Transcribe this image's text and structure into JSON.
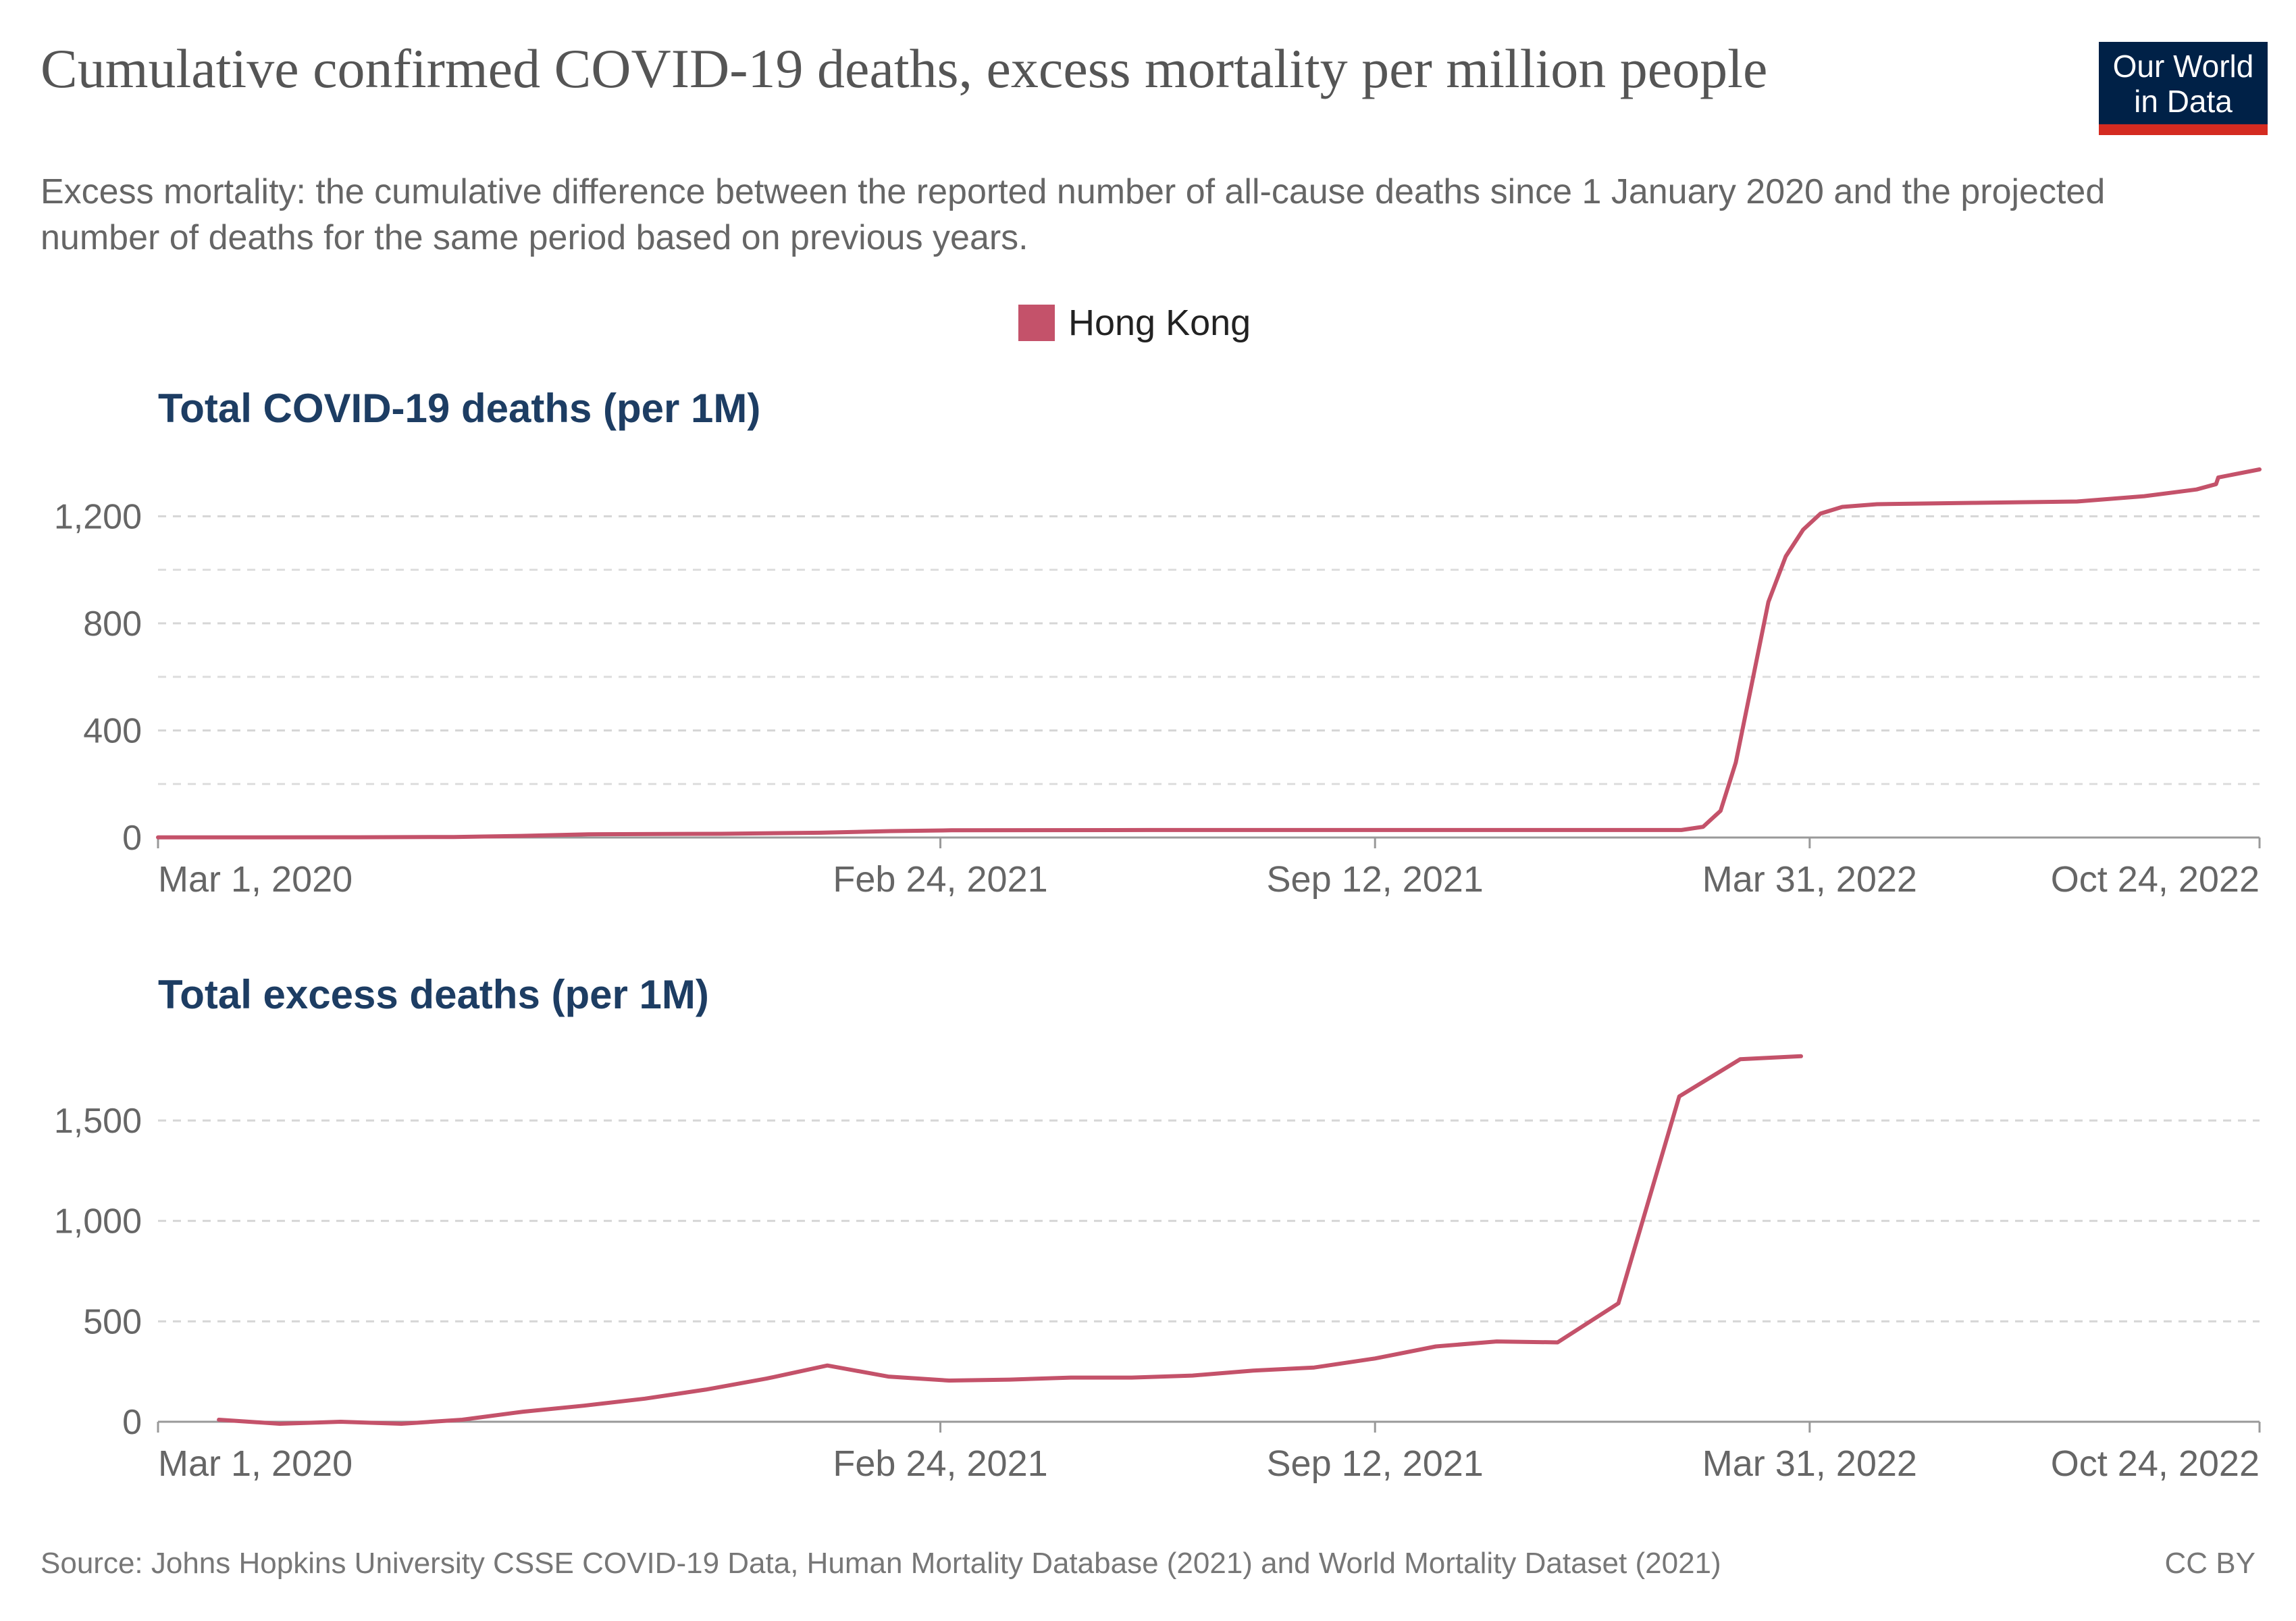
{
  "header": {
    "title": "Cumulative confirmed COVID-19 deaths, excess mortality per million people",
    "subtitle": "Excess mortality: the cumulative difference between the reported number of all-cause deaths since 1 January 2020 and the projected number of deaths for the same period based on previous years.",
    "logo_line1": "Our World",
    "logo_line2": "in Data",
    "logo_color": "#002147",
    "logo_accent": "#d42b21"
  },
  "legend": {
    "label": "Hong Kong",
    "color": "#c4526a"
  },
  "footer": {
    "source": "Source: Johns Hopkins University CSSE COVID-19 Data, Human Mortality Database (2021) and World Mortality Dataset (2021)",
    "license": "CC BY"
  },
  "chart_data": [
    {
      "type": "line",
      "title": "Total COVID-19 deaths (per 1M)",
      "x_axis": {
        "type": "date",
        "range": [
          "2020-03-01",
          "2022-10-24"
        ],
        "ticks": [
          "Mar 1, 2020",
          "Feb 24, 2021",
          "Sep 12, 2021",
          "Mar 31, 2022",
          "Oct 24, 2022"
        ],
        "tick_dates": [
          "2020-03-01",
          "2021-02-24",
          "2021-09-12",
          "2022-03-31",
          "2022-10-24"
        ]
      },
      "y_axis": {
        "range": [
          0,
          1380
        ],
        "ticks": [
          0,
          400,
          800,
          1200
        ],
        "tick_labels": [
          "0",
          "400",
          "800",
          "1,200"
        ],
        "minor_gridlines": [
          200,
          600,
          1000
        ]
      },
      "grid": true,
      "series": [
        {
          "name": "Hong Kong",
          "color": "#c4526a",
          "points": [
            [
              "2020-03-01",
              0.5
            ],
            [
              "2020-06-01",
              1
            ],
            [
              "2020-07-15",
              2
            ],
            [
              "2020-08-15",
              6
            ],
            [
              "2020-09-15",
              12
            ],
            [
              "2020-11-15",
              14
            ],
            [
              "2020-12-31",
              18
            ],
            [
              "2021-02-01",
              24
            ],
            [
              "2021-03-01",
              27
            ],
            [
              "2021-06-01",
              28
            ],
            [
              "2021-09-12",
              28
            ],
            [
              "2021-12-31",
              28
            ],
            [
              "2022-01-31",
              28
            ],
            [
              "2022-02-10",
              40
            ],
            [
              "2022-02-18",
              100
            ],
            [
              "2022-02-25",
              280
            ],
            [
              "2022-03-05",
              600
            ],
            [
              "2022-03-12",
              880
            ],
            [
              "2022-03-20",
              1050
            ],
            [
              "2022-03-28",
              1150
            ],
            [
              "2022-04-05",
              1210
            ],
            [
              "2022-04-15",
              1235
            ],
            [
              "2022-05-01",
              1245
            ],
            [
              "2022-06-15",
              1250
            ],
            [
              "2022-08-01",
              1255
            ],
            [
              "2022-09-01",
              1275
            ],
            [
              "2022-09-25",
              1300
            ],
            [
              "2022-10-04",
              1320
            ],
            [
              "2022-10-05",
              1345
            ],
            [
              "2022-10-24",
              1375
            ]
          ]
        }
      ]
    },
    {
      "type": "line",
      "title": "Total excess deaths (per 1M)",
      "x_axis": {
        "type": "date",
        "range": [
          "2020-03-01",
          "2022-10-24"
        ],
        "ticks": [
          "Mar 1, 2020",
          "Feb 24, 2021",
          "Sep 12, 2021",
          "Mar 31, 2022",
          "Oct 24, 2022"
        ],
        "tick_dates": [
          "2020-03-01",
          "2021-02-24",
          "2021-09-12",
          "2022-03-31",
          "2022-10-24"
        ]
      },
      "y_axis": {
        "range": [
          0,
          1900
        ],
        "ticks": [
          0,
          500,
          1000,
          1500
        ],
        "tick_labels": [
          "0",
          "500",
          "1,000",
          "1,500"
        ]
      },
      "grid": true,
      "series": [
        {
          "name": "Hong Kong",
          "color": "#c4526a",
          "points": [
            [
              "2020-03-29",
              10
            ],
            [
              "2020-04-26",
              -10
            ],
            [
              "2020-05-24",
              0
            ],
            [
              "2020-06-21",
              -10
            ],
            [
              "2020-07-19",
              10
            ],
            [
              "2020-08-16",
              50
            ],
            [
              "2020-09-13",
              80
            ],
            [
              "2020-10-11",
              115
            ],
            [
              "2020-11-08",
              160
            ],
            [
              "2020-12-06",
              215
            ],
            [
              "2021-01-03",
              280
            ],
            [
              "2021-01-31",
              225
            ],
            [
              "2021-02-28",
              205
            ],
            [
              "2021-03-28",
              210
            ],
            [
              "2021-04-25",
              220
            ],
            [
              "2021-05-23",
              220
            ],
            [
              "2021-06-20",
              230
            ],
            [
              "2021-07-18",
              255
            ],
            [
              "2021-08-15",
              270
            ],
            [
              "2021-09-12",
              315
            ],
            [
              "2021-10-10",
              375
            ],
            [
              "2021-11-07",
              400
            ],
            [
              "2021-12-05",
              395
            ],
            [
              "2022-01-02",
              590
            ],
            [
              "2022-01-30",
              1620
            ],
            [
              "2022-02-27",
              1805
            ],
            [
              "2022-03-27",
              1820
            ]
          ]
        }
      ]
    }
  ]
}
